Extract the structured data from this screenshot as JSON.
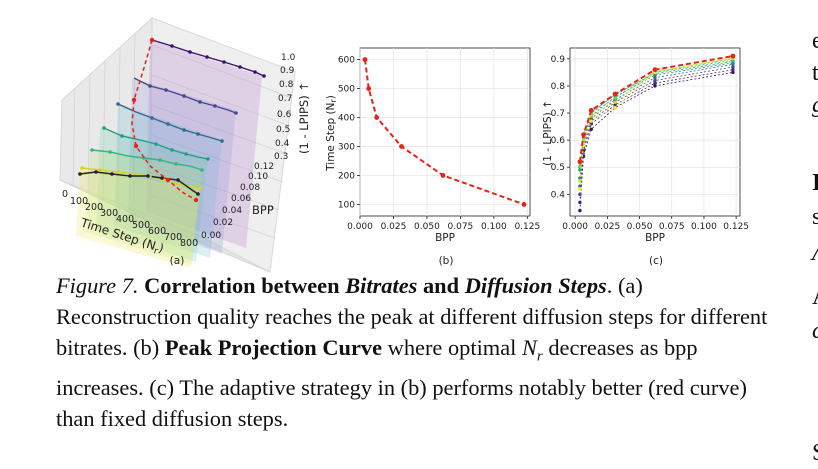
{
  "panel_labels": [
    "(a)",
    "(b)",
    "(c)"
  ],
  "panel_a": {
    "xlabel": "Time Step (N",
    "xlabel_sub": "r",
    "xlabel_end": ")",
    "ylabel": "BPP",
    "zlabel": "(1 - LPIPS) ↑",
    "x_ticks": [
      "0",
      "100",
      "200",
      "300",
      "400",
      "500",
      "600",
      "700",
      "800"
    ],
    "y_ticks": [
      "0.00",
      "0.02",
      "0.04",
      "0.06",
      "0.08",
      "0.10",
      "0.12"
    ],
    "z_ticks": [
      "0.3",
      "0.4",
      "0.5",
      "0.6",
      "0.7",
      "0.8",
      "0.9",
      "1.0"
    ]
  },
  "chart_data": [
    {
      "panel": "(b)",
      "type": "line",
      "title": "",
      "xlabel": "BPP",
      "ylabel": "Time Step (N",
      "ylabel_sub": "r",
      "ylabel_end": ")",
      "x_ticks": [
        "0.000",
        "0.025",
        "0.050",
        "0.075",
        "0.100",
        "0.125"
      ],
      "y_ticks": [
        "100",
        "200",
        "300",
        "400",
        "500",
        "600"
      ],
      "xlim": [
        0,
        0.127
      ],
      "ylim": [
        60,
        640
      ],
      "grid": true,
      "series": [
        {
          "color": "#e8211c",
          "x": [
            0.0037,
            0.0065,
            0.0125,
            0.031,
            0.062,
            0.1225
          ],
          "y": [
            600,
            500,
            400,
            300,
            200,
            100
          ]
        }
      ]
    },
    {
      "panel": "(c)",
      "type": "line",
      "title": "",
      "xlabel": "BPP",
      "ylabel": "(1 - LPIPS) ↑",
      "x_ticks": [
        "0.000",
        "0.025",
        "0.050",
        "0.075",
        "0.100",
        "0.125"
      ],
      "y_ticks": [
        "0.4",
        "0.5",
        "0.6",
        "0.7",
        "0.8",
        "0.9"
      ],
      "xlim": [
        -0.004,
        0.128
      ],
      "ylim": [
        0.32,
        0.94
      ],
      "grid": true,
      "x": [
        0.0037,
        0.0065,
        0.0125,
        0.031,
        0.062,
        0.1225
      ],
      "series": [
        {
          "color": "#3b0f70",
          "dashed": false,
          "values": [
            0.34,
            0.54,
            0.64,
            0.72,
            0.8,
            0.85
          ]
        },
        {
          "color": "#4a2384",
          "dashed": false,
          "values": [
            0.37,
            0.56,
            0.66,
            0.73,
            0.81,
            0.86
          ]
        },
        {
          "color": "#404a8a",
          "dashed": false,
          "values": [
            0.4,
            0.57,
            0.67,
            0.74,
            0.82,
            0.87
          ]
        },
        {
          "color": "#31688e",
          "dashed": false,
          "values": [
            0.43,
            0.58,
            0.68,
            0.75,
            0.83,
            0.88
          ]
        },
        {
          "color": "#26828e",
          "dashed": false,
          "values": [
            0.46,
            0.6,
            0.69,
            0.76,
            0.84,
            0.885
          ]
        },
        {
          "color": "#1f9e89",
          "dashed": false,
          "values": [
            0.49,
            0.61,
            0.7,
            0.77,
            0.845,
            0.89
          ]
        },
        {
          "color": "#35b779",
          "dashed": false,
          "values": [
            0.5,
            0.62,
            0.705,
            0.765,
            0.85,
            0.895
          ]
        },
        {
          "color": "#6ece58",
          "dashed": false,
          "values": [
            0.505,
            0.615,
            0.7,
            0.755,
            0.852,
            0.9
          ]
        },
        {
          "color": "#b5de2b",
          "dashed": false,
          "values": [
            0.45,
            0.6,
            0.69,
            0.74,
            0.853,
            0.902
          ]
        },
        {
          "color": "#fde725",
          "dashed": false,
          "values": [
            0.42,
            0.58,
            0.67,
            0.72,
            0.85,
            0.905
          ]
        },
        {
          "color": "#e8211c",
          "dashed": true,
          "values": [
            0.52,
            0.62,
            0.71,
            0.77,
            0.86,
            0.91
          ]
        }
      ]
    }
  ],
  "caption": {
    "label": "Figure 7.",
    "bold_1": "Correlation between",
    "bold_it_1": "Bitrates",
    "bold_2": "and",
    "bold_it_2": "Diffusion Steps",
    "after_title": ". (a) Reconstruction quality reaches the peak at different diffusion steps for different bitrates. (b)",
    "bold_3": "Peak Projection Curve",
    "text_2": "where optimal",
    "math_n": "N",
    "math_sub": "r",
    "text_3": "decreases as bpp increases. (c) The adaptive strategy in (b) performs notably better (red curve) than fixed diffusion steps."
  },
  "right_column": [
    "e",
    "t",
    "g",
    "I",
    "s",
    "Λ",
    "A",
    "c",
    "S"
  ]
}
